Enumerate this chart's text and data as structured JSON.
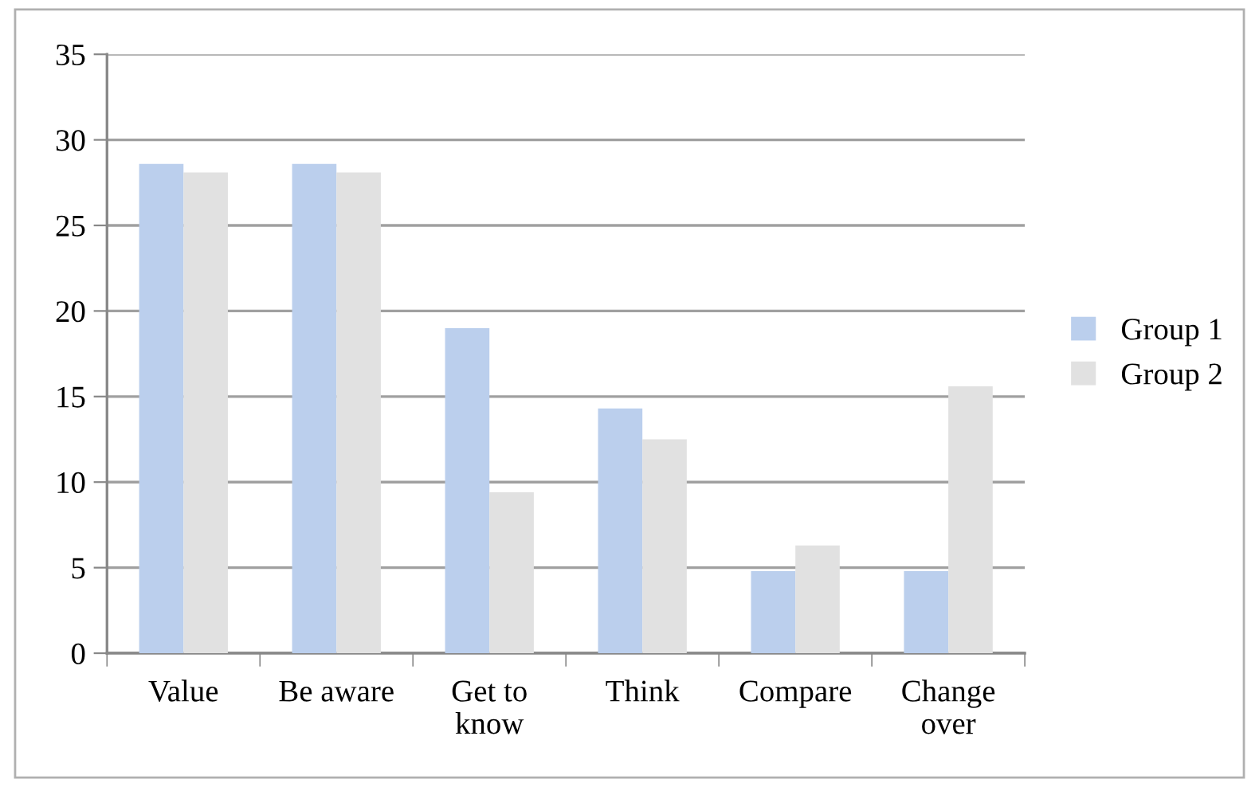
{
  "chart_data": {
    "type": "bar",
    "categories": [
      "Value",
      "Be aware",
      "Get to\nknow",
      "Think",
      "Compare",
      "Change\nover"
    ],
    "series": [
      {
        "name": "Group 1",
        "color": "#bbcfed",
        "values": [
          28.6,
          28.6,
          19.0,
          14.3,
          4.8,
          4.8
        ]
      },
      {
        "name": "Group 2",
        "color": "#e1e1e1",
        "values": [
          28.1,
          28.1,
          9.4,
          12.5,
          6.3,
          15.6
        ]
      }
    ],
    "ylim": [
      0,
      35
    ],
    "yticks": [
      0,
      5,
      10,
      15,
      20,
      25,
      30,
      35
    ],
    "grid": "y",
    "legend": "right"
  }
}
